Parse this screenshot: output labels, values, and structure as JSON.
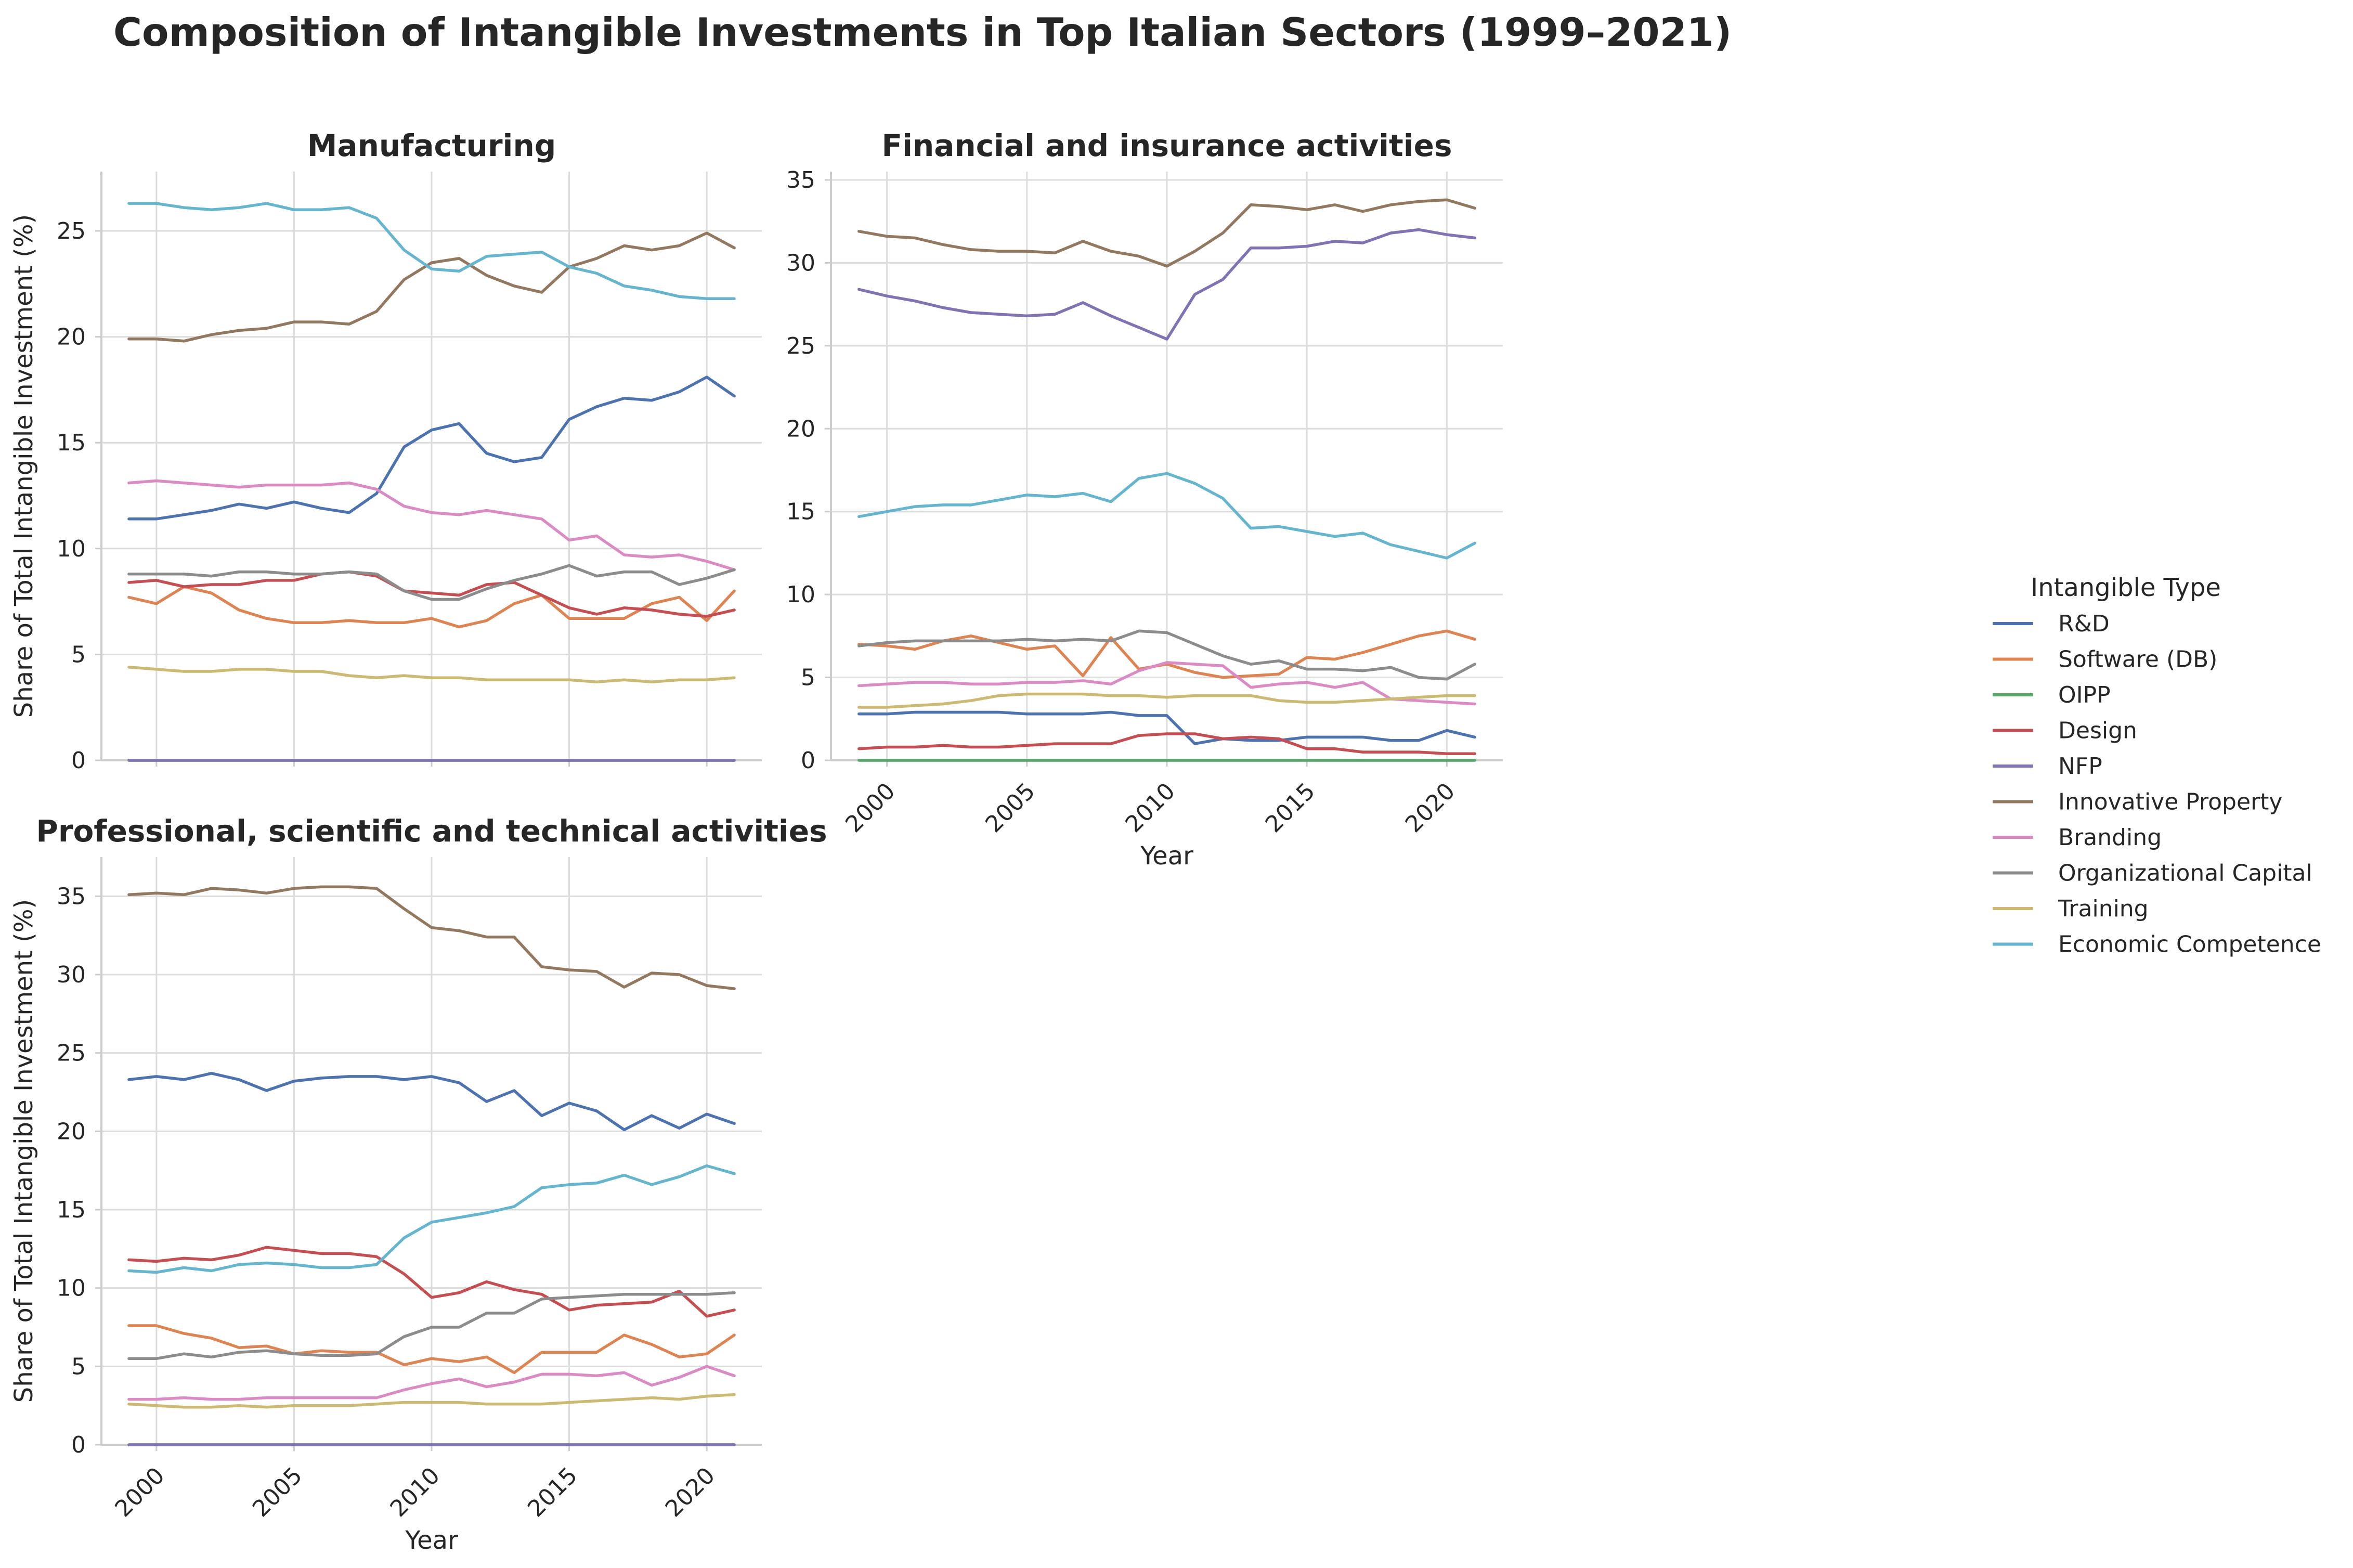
{
  "figure": {
    "title": "Composition of Intangible Investments in Top Italian Sectors (1999–2021)"
  },
  "legend": {
    "title": "Intangible Type",
    "placement": "right"
  },
  "chart_data": [
    {
      "type": "line",
      "title": "Manufacturing",
      "xlabel": "",
      "ylabel": "Share of Total Intangible Investment (%)",
      "show_xticklabels": false,
      "xlim": [
        1998.0,
        2022.0
      ],
      "ylim": [
        0,
        27.8
      ],
      "yticks": [
        0,
        5,
        10,
        15,
        20,
        25
      ],
      "xticks": [
        2000,
        2005,
        2010,
        2015,
        2020
      ],
      "grid": true,
      "x": [
        1999,
        2000,
        2001,
        2002,
        2003,
        2004,
        2005,
        2006,
        2007,
        2008,
        2009,
        2010,
        2011,
        2012,
        2013,
        2014,
        2015,
        2016,
        2017,
        2018,
        2019,
        2020,
        2021
      ],
      "series": [
        {
          "name": "R&D",
          "color": "#4c72b0",
          "values": [
            11.4,
            11.4,
            11.6,
            11.8,
            12.1,
            11.9,
            12.2,
            11.9,
            11.7,
            12.6,
            14.8,
            15.6,
            15.9,
            14.5,
            14.1,
            14.3,
            16.1,
            16.7,
            17.1,
            17.0,
            17.4,
            18.1,
            17.2
          ]
        },
        {
          "name": "Software (DB)",
          "color": "#dd8452",
          "values": [
            7.7,
            7.4,
            8.2,
            7.9,
            7.1,
            6.7,
            6.5,
            6.5,
            6.6,
            6.5,
            6.5,
            6.7,
            6.3,
            6.6,
            7.4,
            7.8,
            6.7,
            6.7,
            6.7,
            7.4,
            7.7,
            6.6,
            8.0
          ]
        },
        {
          "name": "OIPP",
          "color": "#55a868",
          "values": [
            0,
            0,
            0,
            0,
            0,
            0,
            0,
            0,
            0,
            0,
            0,
            0,
            0,
            0,
            0,
            0,
            0,
            0,
            0,
            0,
            0,
            0,
            0
          ]
        },
        {
          "name": "Design",
          "color": "#c44e52",
          "values": [
            8.4,
            8.5,
            8.2,
            8.3,
            8.3,
            8.5,
            8.5,
            8.8,
            8.9,
            8.7,
            8.0,
            7.9,
            7.8,
            8.3,
            8.4,
            7.8,
            7.2,
            6.9,
            7.2,
            7.1,
            6.9,
            6.8,
            7.1
          ]
        },
        {
          "name": "NFP",
          "color": "#8172b3",
          "values": [
            0,
            0,
            0,
            0,
            0,
            0,
            0,
            0,
            0,
            0,
            0,
            0,
            0,
            0,
            0,
            0,
            0,
            0,
            0,
            0,
            0,
            0,
            0
          ]
        },
        {
          "name": "Innovative Property",
          "color": "#937860",
          "values": [
            19.9,
            19.9,
            19.8,
            20.1,
            20.3,
            20.4,
            20.7,
            20.7,
            20.6,
            21.2,
            22.7,
            23.5,
            23.7,
            22.9,
            22.4,
            22.1,
            23.3,
            23.7,
            24.3,
            24.1,
            24.3,
            24.9,
            24.2
          ]
        },
        {
          "name": "Branding",
          "color": "#da8bc3",
          "values": [
            13.1,
            13.2,
            13.1,
            13.0,
            12.9,
            13.0,
            13.0,
            13.0,
            13.1,
            12.8,
            12.0,
            11.7,
            11.6,
            11.8,
            11.6,
            11.4,
            10.4,
            10.6,
            9.7,
            9.6,
            9.7,
            9.4,
            9.0
          ]
        },
        {
          "name": "Organizational Capital",
          "color": "#8c8c8c",
          "values": [
            8.8,
            8.8,
            8.8,
            8.7,
            8.9,
            8.9,
            8.8,
            8.8,
            8.9,
            8.8,
            8.0,
            7.6,
            7.6,
            8.1,
            8.5,
            8.8,
            9.2,
            8.7,
            8.9,
            8.9,
            8.3,
            8.6,
            9.0
          ]
        },
        {
          "name": "Training",
          "color": "#ccb974",
          "values": [
            4.4,
            4.3,
            4.2,
            4.2,
            4.3,
            4.3,
            4.2,
            4.2,
            4.0,
            3.9,
            4.0,
            3.9,
            3.9,
            3.8,
            3.8,
            3.8,
            3.8,
            3.7,
            3.8,
            3.7,
            3.8,
            3.8,
            3.9
          ]
        },
        {
          "name": "Economic Competence",
          "color": "#64b5cd",
          "values": [
            26.3,
            26.3,
            26.1,
            26.0,
            26.1,
            26.3,
            26.0,
            26.0,
            26.1,
            25.6,
            24.1,
            23.2,
            23.1,
            23.8,
            23.9,
            24.0,
            23.3,
            23.0,
            22.4,
            22.2,
            21.9,
            21.8,
            21.8
          ]
        }
      ]
    },
    {
      "type": "line",
      "title": "Financial and insurance activities",
      "xlabel": "Year",
      "ylabel": "",
      "show_xticklabels": true,
      "xlim": [
        1998.0,
        2022.0
      ],
      "ylim": [
        0,
        35.5
      ],
      "yticks": [
        0,
        5,
        10,
        15,
        20,
        25,
        30,
        35
      ],
      "xticks": [
        2000,
        2005,
        2010,
        2015,
        2020
      ],
      "grid": true,
      "x": [
        1999,
        2000,
        2001,
        2002,
        2003,
        2004,
        2005,
        2006,
        2007,
        2008,
        2009,
        2010,
        2011,
        2012,
        2013,
        2014,
        2015,
        2016,
        2017,
        2018,
        2019,
        2020,
        2021
      ],
      "series": [
        {
          "name": "R&D",
          "color": "#4c72b0",
          "values": [
            2.8,
            2.8,
            2.9,
            2.9,
            2.9,
            2.9,
            2.8,
            2.8,
            2.8,
            2.9,
            2.7,
            2.7,
            1.0,
            1.3,
            1.2,
            1.2,
            1.4,
            1.4,
            1.4,
            1.2,
            1.2,
            1.8,
            1.4
          ]
        },
        {
          "name": "Software (DB)",
          "color": "#dd8452",
          "values": [
            7.0,
            6.9,
            6.7,
            7.2,
            7.5,
            7.1,
            6.7,
            6.9,
            5.1,
            7.4,
            5.5,
            5.8,
            5.3,
            5.0,
            5.1,
            5.2,
            6.2,
            6.1,
            6.5,
            7.0,
            7.5,
            7.8,
            7.3
          ]
        },
        {
          "name": "OIPP",
          "color": "#55a868",
          "values": [
            0,
            0,
            0,
            0,
            0,
            0,
            0,
            0,
            0,
            0,
            0,
            0,
            0,
            0,
            0,
            0,
            0,
            0,
            0,
            0,
            0,
            0,
            0
          ]
        },
        {
          "name": "Design",
          "color": "#c44e52",
          "values": [
            0.7,
            0.8,
            0.8,
            0.9,
            0.8,
            0.8,
            0.9,
            1.0,
            1.0,
            1.0,
            1.5,
            1.6,
            1.6,
            1.3,
            1.4,
            1.3,
            0.7,
            0.7,
            0.5,
            0.5,
            0.5,
            0.4,
            0.4
          ]
        },
        {
          "name": "NFP",
          "color": "#8172b3",
          "values": [
            28.4,
            28.0,
            27.7,
            27.3,
            27.0,
            26.9,
            26.8,
            26.9,
            27.6,
            26.8,
            26.1,
            25.4,
            28.1,
            29.0,
            30.9,
            30.9,
            31.0,
            31.3,
            31.2,
            31.8,
            32.0,
            31.7,
            31.5
          ]
        },
        {
          "name": "Innovative Property",
          "color": "#937860",
          "values": [
            31.9,
            31.6,
            31.5,
            31.1,
            30.8,
            30.7,
            30.7,
            30.6,
            31.3,
            30.7,
            30.4,
            29.8,
            30.7,
            31.8,
            33.5,
            33.4,
            33.2,
            33.5,
            33.1,
            33.5,
            33.7,
            33.8,
            33.3
          ]
        },
        {
          "name": "Branding",
          "color": "#da8bc3",
          "values": [
            4.5,
            4.6,
            4.7,
            4.7,
            4.6,
            4.6,
            4.7,
            4.7,
            4.8,
            4.6,
            5.4,
            5.9,
            5.8,
            5.7,
            4.4,
            4.6,
            4.7,
            4.4,
            4.7,
            3.7,
            3.6,
            3.5,
            3.4
          ]
        },
        {
          "name": "Organizational Capital",
          "color": "#8c8c8c",
          "values": [
            6.9,
            7.1,
            7.2,
            7.2,
            7.2,
            7.2,
            7.3,
            7.2,
            7.3,
            7.2,
            7.8,
            7.7,
            7.0,
            6.3,
            5.8,
            6.0,
            5.5,
            5.5,
            5.4,
            5.6,
            5.0,
            4.9,
            5.8
          ]
        },
        {
          "name": "Training",
          "color": "#ccb974",
          "values": [
            3.2,
            3.2,
            3.3,
            3.4,
            3.6,
            3.9,
            4.0,
            4.0,
            4.0,
            3.9,
            3.9,
            3.8,
            3.9,
            3.9,
            3.9,
            3.6,
            3.5,
            3.5,
            3.6,
            3.7,
            3.8,
            3.9,
            3.9
          ]
        },
        {
          "name": "Economic Competence",
          "color": "#64b5cd",
          "values": [
            14.7,
            15.0,
            15.3,
            15.4,
            15.4,
            15.7,
            16.0,
            15.9,
            16.1,
            15.6,
            17.0,
            17.3,
            16.7,
            15.8,
            14.0,
            14.1,
            13.8,
            13.5,
            13.7,
            13.0,
            12.6,
            12.2,
            13.1
          ]
        }
      ]
    },
    {
      "type": "line",
      "title": "Professional, scientific and technical activities",
      "xlabel": "Year",
      "ylabel": "Share of Total Intangible Investment (%)",
      "show_xticklabels": true,
      "xlim": [
        1998.0,
        2022.0
      ],
      "ylim": [
        0,
        37.5
      ],
      "yticks": [
        0,
        5,
        10,
        15,
        20,
        25,
        30,
        35
      ],
      "xticks": [
        2000,
        2005,
        2010,
        2015,
        2020
      ],
      "grid": true,
      "x": [
        1999,
        2000,
        2001,
        2002,
        2003,
        2004,
        2005,
        2006,
        2007,
        2008,
        2009,
        2010,
        2011,
        2012,
        2013,
        2014,
        2015,
        2016,
        2017,
        2018,
        2019,
        2020,
        2021
      ],
      "series": [
        {
          "name": "R&D",
          "color": "#4c72b0",
          "values": [
            23.3,
            23.5,
            23.3,
            23.7,
            23.3,
            22.6,
            23.2,
            23.4,
            23.5,
            23.5,
            23.3,
            23.5,
            23.1,
            21.9,
            22.6,
            21.0,
            21.8,
            21.3,
            20.1,
            21.0,
            20.2,
            21.1,
            20.5
          ]
        },
        {
          "name": "Software (DB)",
          "color": "#dd8452",
          "values": [
            7.6,
            7.6,
            7.1,
            6.8,
            6.2,
            6.3,
            5.8,
            6.0,
            5.9,
            5.9,
            5.1,
            5.5,
            5.3,
            5.6,
            4.6,
            5.9,
            5.9,
            5.9,
            7.0,
            6.4,
            5.6,
            5.8,
            7.0
          ]
        },
        {
          "name": "OIPP",
          "color": "#55a868",
          "values": [
            0,
            0,
            0,
            0,
            0,
            0,
            0,
            0,
            0,
            0,
            0,
            0,
            0,
            0,
            0,
            0,
            0,
            0,
            0,
            0,
            0,
            0,
            0
          ]
        },
        {
          "name": "Design",
          "color": "#c44e52",
          "values": [
            11.8,
            11.7,
            11.9,
            11.8,
            12.1,
            12.6,
            12.4,
            12.2,
            12.2,
            12.0,
            10.9,
            9.4,
            9.7,
            10.4,
            9.9,
            9.6,
            8.6,
            8.9,
            9.0,
            9.1,
            9.8,
            8.2,
            8.6
          ]
        },
        {
          "name": "NFP",
          "color": "#8172b3",
          "values": [
            0,
            0,
            0,
            0,
            0,
            0,
            0,
            0,
            0,
            0,
            0,
            0,
            0,
            0,
            0,
            0,
            0,
            0,
            0,
            0,
            0,
            0,
            0
          ]
        },
        {
          "name": "Innovative Property",
          "color": "#937860",
          "values": [
            35.1,
            35.2,
            35.1,
            35.5,
            35.4,
            35.2,
            35.5,
            35.6,
            35.6,
            35.5,
            34.2,
            33.0,
            32.8,
            32.4,
            32.4,
            30.5,
            30.3,
            30.2,
            29.2,
            30.1,
            30.0,
            29.3,
            29.1
          ]
        },
        {
          "name": "Branding",
          "color": "#da8bc3",
          "values": [
            2.9,
            2.9,
            3.0,
            2.9,
            2.9,
            3.0,
            3.0,
            3.0,
            3.0,
            3.0,
            3.5,
            3.9,
            4.2,
            3.7,
            4.0,
            4.5,
            4.5,
            4.4,
            4.6,
            3.8,
            4.3,
            5.0,
            4.4
          ]
        },
        {
          "name": "Organizational Capital",
          "color": "#8c8c8c",
          "values": [
            5.5,
            5.5,
            5.8,
            5.6,
            5.9,
            6.0,
            5.8,
            5.7,
            5.7,
            5.8,
            6.9,
            7.5,
            7.5,
            8.4,
            8.4,
            9.3,
            9.4,
            9.5,
            9.6,
            9.6,
            9.6,
            9.6,
            9.7
          ]
        },
        {
          "name": "Training",
          "color": "#ccb974",
          "values": [
            2.6,
            2.5,
            2.4,
            2.4,
            2.5,
            2.4,
            2.5,
            2.5,
            2.5,
            2.6,
            2.7,
            2.7,
            2.7,
            2.6,
            2.6,
            2.6,
            2.7,
            2.8,
            2.9,
            3.0,
            2.9,
            3.1,
            3.2
          ]
        },
        {
          "name": "Economic Competence",
          "color": "#64b5cd",
          "values": [
            11.1,
            11.0,
            11.3,
            11.1,
            11.5,
            11.6,
            11.5,
            11.3,
            11.3,
            11.5,
            13.2,
            14.2,
            14.5,
            14.8,
            15.2,
            16.4,
            16.6,
            16.7,
            17.2,
            16.6,
            17.1,
            17.8,
            17.3
          ]
        }
      ]
    }
  ]
}
